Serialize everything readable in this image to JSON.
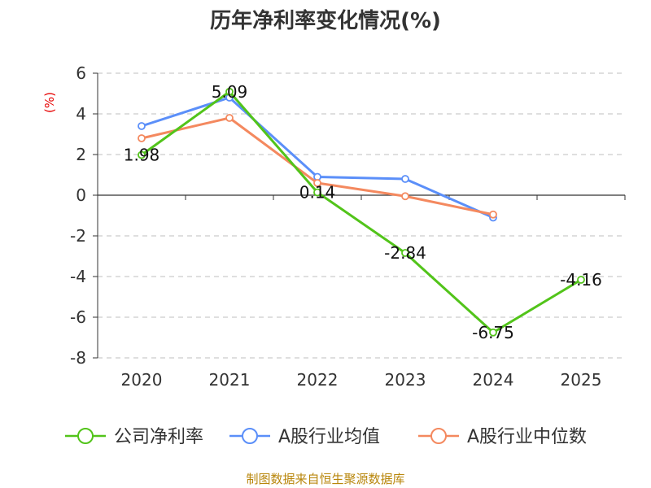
{
  "chart_data": {
    "type": "line",
    "title": "历年净利率变化情况(%)",
    "unit_label": "(%)",
    "categories": [
      "2020",
      "2021",
      "2022",
      "2023",
      "2024",
      "2025"
    ],
    "ylim": [
      -8,
      6
    ],
    "yticks": [
      6,
      4,
      2,
      0,
      -2,
      -4,
      -6,
      -8
    ],
    "grid": true,
    "legend_position": "bottom",
    "series": [
      {
        "name": "公司净利率",
        "color": "#52c41a",
        "values": [
          1.98,
          5.09,
          0.14,
          -2.84,
          -6.75,
          -4.16
        ],
        "labels": [
          "1.98",
          "5.09",
          "0.14",
          "-2.84",
          "-6.75",
          "-4.16"
        ]
      },
      {
        "name": "A股行业均值",
        "color": "#5b8ff9",
        "values": [
          3.4,
          4.8,
          0.9,
          0.8,
          -1.1,
          null
        ]
      },
      {
        "name": "A股行业中位数",
        "color": "#f4895f",
        "values": [
          2.8,
          3.8,
          0.6,
          -0.05,
          -0.95,
          null
        ]
      }
    ],
    "source": "制图数据来自恒生聚源数据库"
  }
}
